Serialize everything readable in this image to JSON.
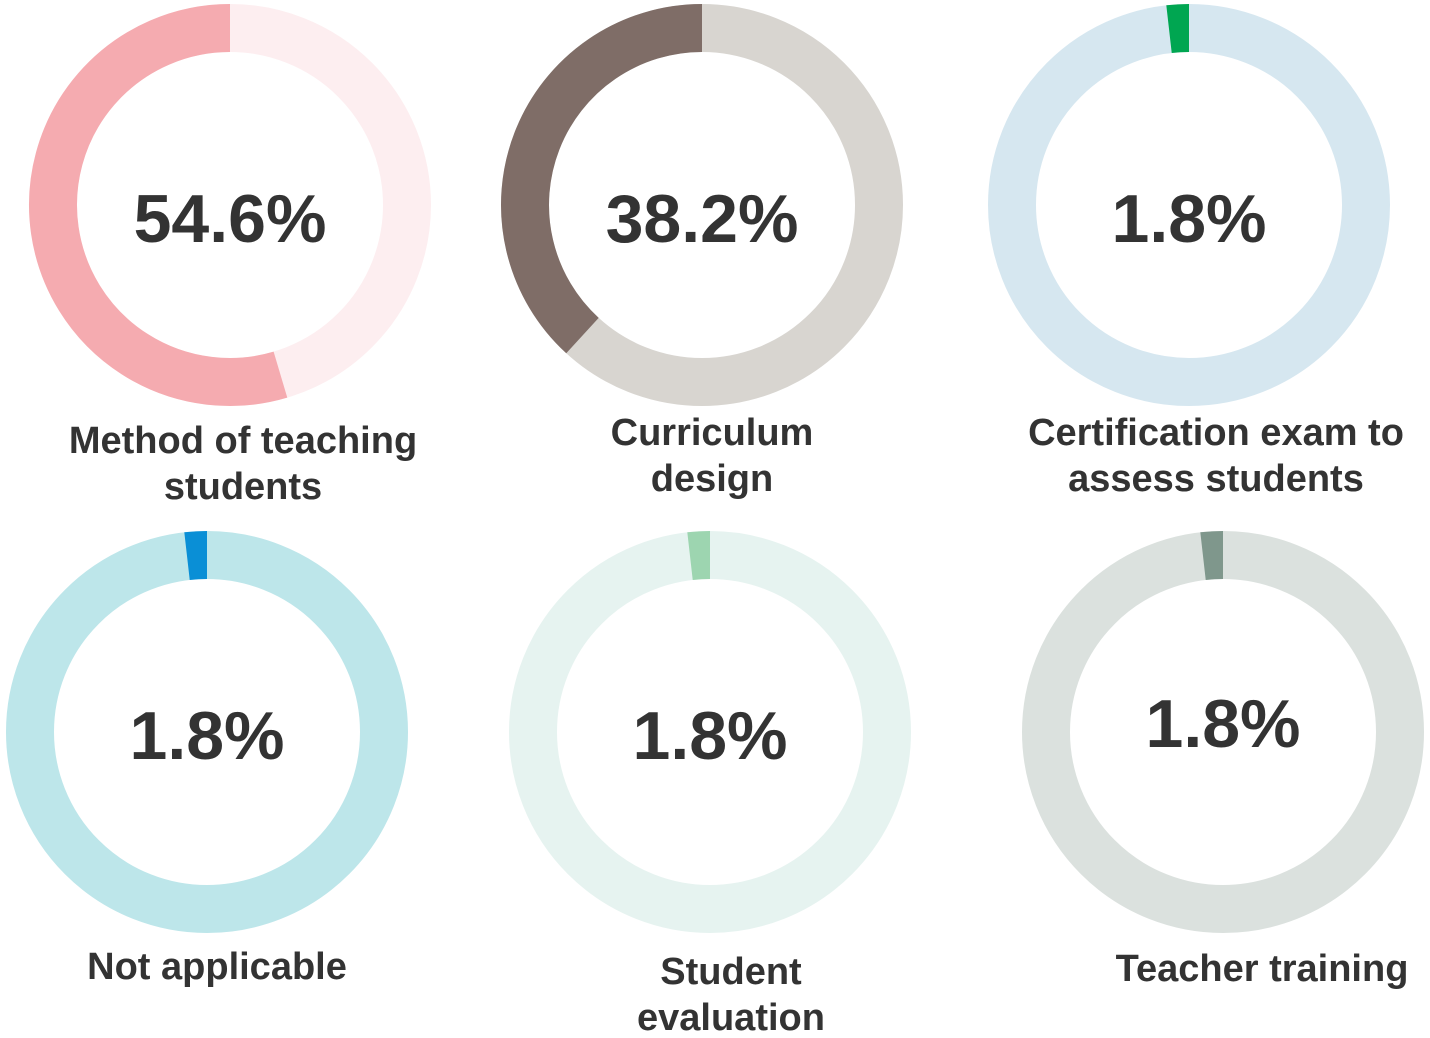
{
  "chart_data": {
    "type": "pie",
    "series": [
      {
        "name": "Method of teaching students",
        "value": 54.6,
        "label": "54.6%",
        "caption_lines": [
          "Method of teaching",
          "students"
        ],
        "fg": "#f5abb0",
        "bg": "#fdeef0"
      },
      {
        "name": "Curriculum design",
        "value": 38.2,
        "label": "38.2%",
        "caption_lines": [
          "Curriculum",
          "design"
        ],
        "fg": "#7f6d67",
        "bg": "#d8d5d0"
      },
      {
        "name": "Certification exam to assess students",
        "value": 1.8,
        "label": "1.8%",
        "caption_lines": [
          "Certification exam to",
          "assess students"
        ],
        "fg": "#00a651",
        "bg": "#d6e7f0"
      },
      {
        "name": "Not applicable",
        "value": 1.8,
        "label": "1.8%",
        "caption_lines": [
          "Not applicable"
        ],
        "fg": "#0a8fd6",
        "bg": "#bde6ea"
      },
      {
        "name": "Student evaluation",
        "value": 1.8,
        "label": "1.8%",
        "caption_lines": [
          "Student",
          "evaluation"
        ],
        "fg": "#9dd5b0",
        "bg": "#e6f3f0"
      },
      {
        "name": "Teacher training",
        "value": 1.8,
        "label": "1.8%",
        "caption_lines": [
          "Teacher training"
        ],
        "fg": "#7f978c",
        "bg": "#dbe1de"
      }
    ]
  }
}
